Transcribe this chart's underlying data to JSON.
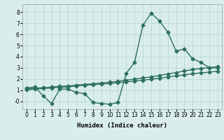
{
  "title": "",
  "xlabel": "Humidex (Indice chaleur)",
  "xlim": [
    -0.5,
    23.5
  ],
  "ylim": [
    -0.7,
    8.7
  ],
  "yticks": [
    0,
    1,
    2,
    3,
    4,
    5,
    6,
    7,
    8
  ],
  "xticks": [
    0,
    1,
    2,
    3,
    4,
    5,
    6,
    7,
    8,
    9,
    10,
    11,
    12,
    13,
    14,
    15,
    16,
    17,
    18,
    19,
    20,
    21,
    22,
    23
  ],
  "background_color": "#d9eeea",
  "grid_color": "#b8d8d0",
  "line_color": "#2d6e62",
  "line1_y": [
    1.2,
    1.3,
    0.5,
    -0.2,
    1.1,
    1.1,
    0.8,
    0.7,
    -0.1,
    -0.2,
    -0.25,
    -0.1,
    2.5,
    3.5,
    6.8,
    7.9,
    7.2,
    6.2,
    4.5,
    4.7,
    3.8,
    3.5,
    3.0,
    3.0
  ],
  "line2_y": [
    1.15,
    1.18,
    1.22,
    1.28,
    1.35,
    1.38,
    1.45,
    1.52,
    1.58,
    1.65,
    1.72,
    1.8,
    1.9,
    2.0,
    2.1,
    2.2,
    2.32,
    2.45,
    2.58,
    2.72,
    2.85,
    2.95,
    3.02,
    3.1
  ],
  "line3_y": [
    1.05,
    1.1,
    1.15,
    1.2,
    1.25,
    1.3,
    1.38,
    1.45,
    1.5,
    1.55,
    1.6,
    1.68,
    1.75,
    1.82,
    1.9,
    1.98,
    2.08,
    2.18,
    2.28,
    2.38,
    2.48,
    2.55,
    2.62,
    2.7
  ],
  "marker": "D",
  "markersize": 2.5,
  "linewidth": 1.0,
  "tick_fontsize": 5.5,
  "xlabel_fontsize": 6.5
}
